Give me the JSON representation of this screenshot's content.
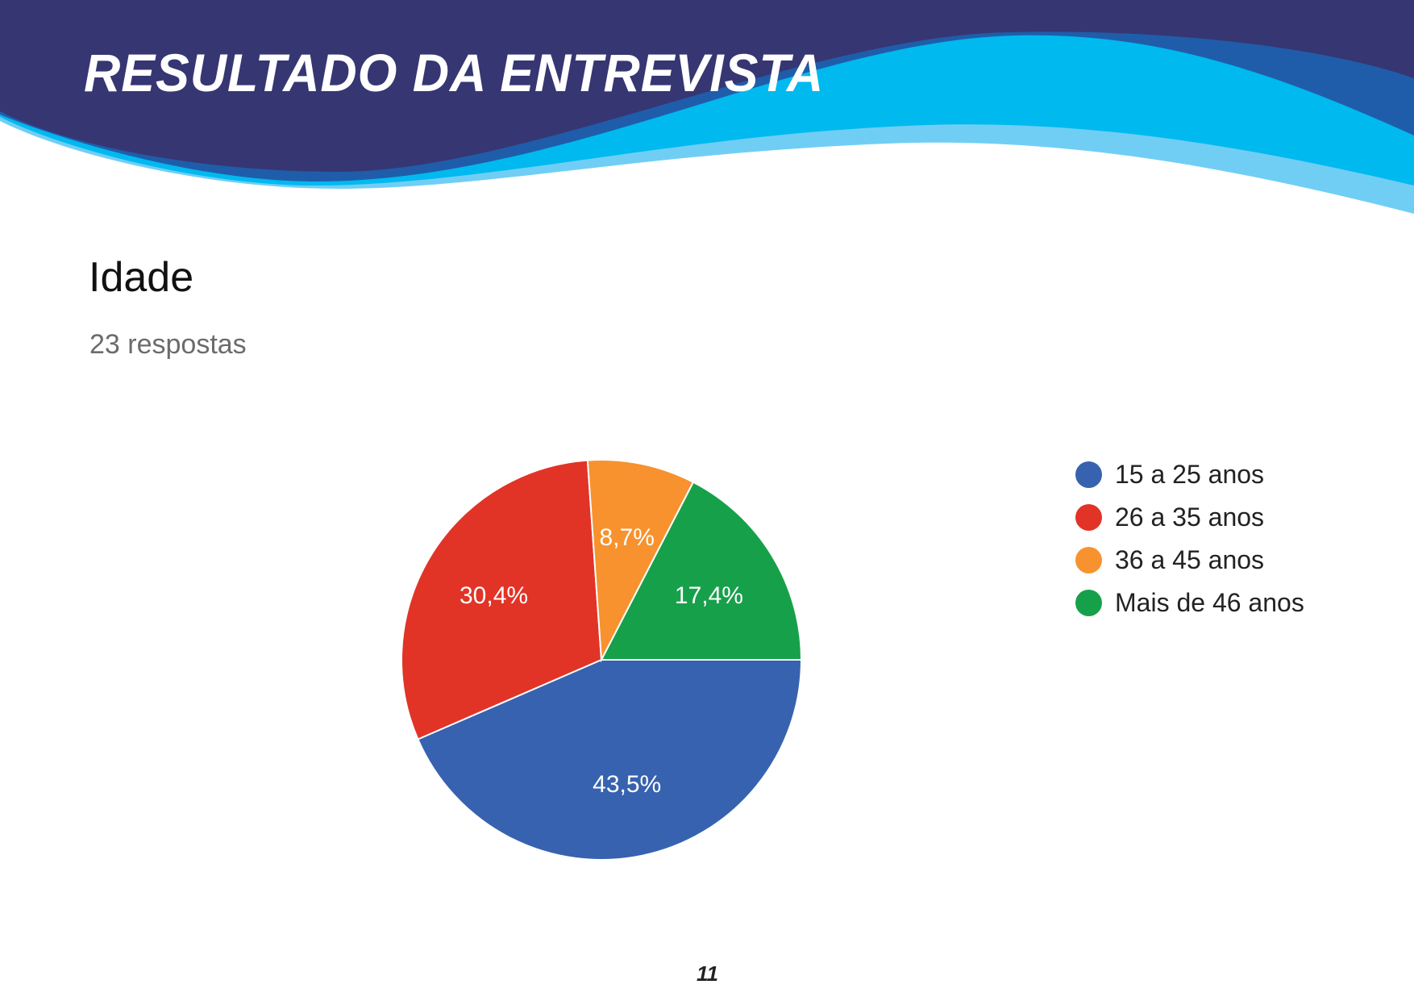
{
  "header": {
    "title": "RESULTADO DA ENTREVISTA"
  },
  "question": {
    "title": "Idade",
    "responses": "23 respostas"
  },
  "page_number": "11",
  "chart_data": {
    "type": "pie",
    "title": "Idade",
    "subtitle": "23 respostas",
    "categories": [
      "15 a 25 anos",
      "26 a 35 anos",
      "36 a 45 anos",
      "Mais de 46 anos"
    ],
    "values": [
      43.5,
      30.4,
      8.7,
      17.4
    ],
    "labels": [
      "43,5%",
      "30,4%",
      "8,7%",
      "17,4%"
    ],
    "colors": [
      "#3762AF",
      "#E23327",
      "#F7922F",
      "#17A04A"
    ],
    "legend_position": "right"
  }
}
